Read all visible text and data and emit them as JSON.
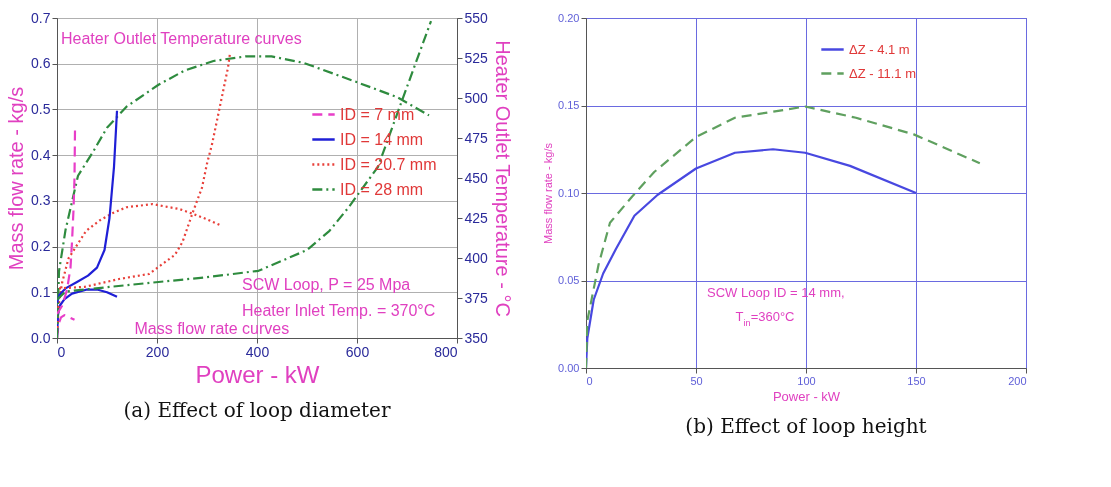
{
  "chart_data": [
    {
      "type": "line",
      "title": "(a) Effect of loop diameter",
      "xlabel": "Power - kW",
      "ylabel": "Mass flow rate - kg/s",
      "y2label": "Heater Outlet Temperature - °C",
      "xlim": [
        0,
        800
      ],
      "xticks": [
        0,
        200,
        400,
        600,
        800
      ],
      "ylim": [
        0,
        0.7
      ],
      "yticks": [
        {
          "value": 0,
          "label": "0.0"
        },
        0.1,
        0.2,
        0.3,
        0.4,
        0.5,
        0.6,
        0.7
      ],
      "y2lim": [
        350,
        550
      ],
      "y2ticks": [
        350,
        375,
        400,
        425,
        450,
        475,
        500,
        525,
        550
      ],
      "grid": true,
      "legend": "right",
      "annotations": [
        "Heater Outlet Temperature curves",
        "SCW Loop, P = 25 Mpa",
        "Heater Inlet Temp. = 370°C",
        "Mass flow rate curves"
      ],
      "series": [
        {
          "name": "ID =  7 mm",
          "color": "#e83ec8",
          "line_style": "dashed",
          "x": [
            0,
            3,
            8,
            15,
            25,
            35
          ],
          "values": [
            0,
            0.03,
            0.045,
            0.05,
            0.045,
            0.04
          ]
        },
        {
          "name": "ID =  14 mm",
          "color": "#1f1fd6",
          "line_style": "solid",
          "x": [
            0,
            2,
            5,
            15,
            30,
            60,
            80,
            100,
            120
          ],
          "values": [
            0,
            0.05,
            0.07,
            0.085,
            0.097,
            0.106,
            0.106,
            0.1,
            0.09
          ]
        },
        {
          "name": "ID =  20.7 mm",
          "color": "#e8403a",
          "line_style": "dotted",
          "x": [
            0,
            3,
            10,
            23,
            58,
            85,
            113,
            139,
            191,
            220,
            245,
            271,
            297,
            326
          ],
          "values": [
            0,
            0.07,
            0.12,
            0.174,
            0.234,
            0.257,
            0.274,
            0.286,
            0.293,
            0.287,
            0.282,
            0.272,
            0.261,
            0.247
          ]
        },
        {
          "name": "ID =  28 mm",
          "color": "#2e8b3e",
          "line_style": "dashdot",
          "x": [
            0,
            4,
            17,
            42,
            72,
            100,
            139,
            203,
            255,
            313,
            377,
            429,
            493,
            589,
            680,
            744
          ],
          "values": [
            0,
            0.146,
            0.236,
            0.355,
            0.407,
            0.46,
            0.506,
            0.554,
            0.585,
            0.606,
            0.616,
            0.616,
            0.602,
            0.564,
            0.527,
            0.487
          ]
        },
        {
          "color": "#e83ec8",
          "line_style": "dashed",
          "axis": "y2",
          "x": [
            0,
            10,
            20,
            27,
            30,
            33,
            35,
            36
          ],
          "values": [
            365,
            370,
            380,
            394,
            410,
            430,
            450,
            480
          ]
        },
        {
          "color": "#1f1fd6",
          "line_style": "solid",
          "axis": "y2",
          "x": [
            0,
            5,
            17,
            40,
            62,
            80,
            95,
            105,
            114,
            120
          ],
          "values": [
            372,
            377,
            381,
            385,
            389,
            394,
            405,
            425,
            457,
            492
          ]
        },
        {
          "color": "#e8403a",
          "line_style": "dotted",
          "axis": "y2",
          "x": [
            4,
            56,
            126,
            184,
            210,
            236,
            251,
            261,
            271,
            290,
            300,
            310,
            326,
            342,
            346
          ],
          "values": [
            381,
            382,
            387,
            390,
            396,
            402,
            410,
            419,
            428,
            444,
            459,
            471,
            495,
            519,
            528
          ]
        },
        {
          "color": "#2e8b3e",
          "line_style": "dashdot",
          "axis": "y2",
          "x": [
            0,
            17,
            107,
            203,
            300,
            403,
            500,
            545,
            584,
            642,
            686,
            748
          ],
          "values": [
            374,
            379,
            382,
            385,
            388,
            392,
            405,
            417,
            432,
            457,
            495,
            548
          ]
        }
      ]
    },
    {
      "type": "line",
      "title": "(b) Effect of loop height",
      "xlabel": "Power - kW",
      "ylabel": "Mass flow rate - kg/s",
      "xlim": [
        0,
        200
      ],
      "xticks": [
        0,
        50,
        100,
        150,
        200
      ],
      "ylim": [
        0,
        0.2
      ],
      "yticks": [
        {
          "value": 0,
          "label": "0.00"
        },
        0.05,
        {
          "value": 0.1,
          "label": "0.10"
        },
        0.15,
        {
          "value": 0.2,
          "label": "0.20"
        }
      ],
      "grid": true,
      "legend": "top right",
      "annotations": [
        "SCW Loop ID = 14 mm,",
        "T$_{in}$=360°C"
      ],
      "series": [
        {
          "name": "ΔZ - 4.1 m",
          "color": "#4848e0",
          "line_style": "solid",
          "x": [
            0,
            0.6,
            3.5,
            7.8,
            13.6,
            22,
            32.6,
            50,
            67.7,
            85,
            99.6,
            120,
            150
          ],
          "values": [
            0,
            0.017,
            0.039,
            0.054,
            0.068,
            0.087,
            0.099,
            0.114,
            0.123,
            0.125,
            0.123,
            0.1155,
            0.1
          ]
        },
        {
          "name": "ΔZ - 11.1 m",
          "color": "#5fa05f",
          "line_style": "dashed",
          "x": [
            0,
            0.6,
            5.7,
            10.9,
            21,
            31,
            50,
            67.7,
            99.6,
            122.7,
            149,
            179
          ],
          "values": [
            0,
            0.027,
            0.059,
            0.083,
            0.098,
            0.112,
            0.132,
            0.143,
            0.1494,
            0.143,
            0.1335,
            0.117
          ]
        }
      ]
    }
  ]
}
